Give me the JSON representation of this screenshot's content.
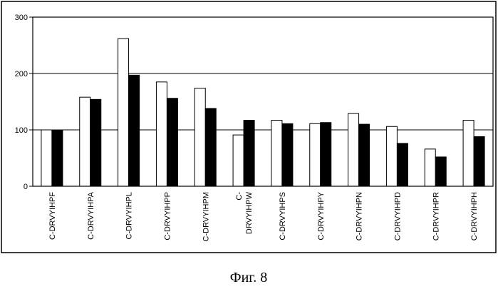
{
  "chart_data": {
    "type": "bar",
    "title": "",
    "xlabel": "",
    "ylabel": "",
    "ylim": [
      0,
      300
    ],
    "yticks": [
      0,
      100,
      200,
      300
    ],
    "grid": true,
    "legend": "none",
    "categories": [
      "C-DRVYIHPF",
      "C-DRVYIHPA",
      "C-DRVYIHPL",
      "C-DRVYIHPP",
      "C-DRVYIHPM",
      "C-\nDRVYIHPW",
      "C-DRVYIHPS",
      "C-DRVYIHPY",
      "C-DRVYIHPN",
      "C-DRVYIHPD",
      "C-DRVYIHPR",
      "C-DRVYIHPH"
    ],
    "series": [
      {
        "color": "#ffffff",
        "values": [
          100,
          158,
          262,
          185,
          174,
          91,
          117,
          111,
          129,
          106,
          66,
          117
        ]
      },
      {
        "color": "#000000",
        "values": [
          100,
          154,
          197,
          156,
          138,
          117,
          111,
          113,
          110,
          76,
          52,
          88
        ]
      }
    ]
  },
  "caption": "Фиг. 8"
}
